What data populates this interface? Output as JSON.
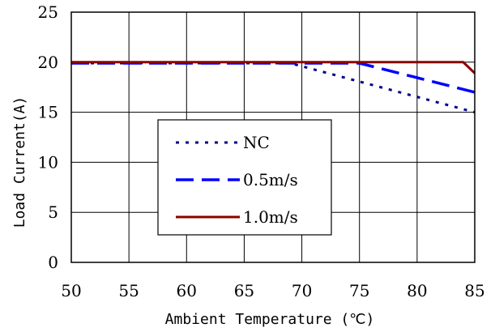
{
  "chart_data": {
    "type": "line",
    "title": "",
    "xlabel": "Ambient Temperature (℃)",
    "ylabel": "Load Current(A)",
    "xlim": [
      50,
      85
    ],
    "ylim": [
      0,
      25
    ],
    "x_ticks": [
      50,
      55,
      60,
      65,
      70,
      75,
      80,
      85
    ],
    "y_ticks": [
      0,
      5,
      10,
      15,
      20,
      25
    ],
    "grid": true,
    "legend_position": "lower-center",
    "series": [
      {
        "name": "NC",
        "style": "dotted",
        "color": "#00008b",
        "x": [
          50,
          69,
          85
        ],
        "y": [
          19.9,
          19.9,
          15
        ]
      },
      {
        "name": "0.5m/s",
        "style": "dashed",
        "color": "#0000ff",
        "x": [
          50,
          75,
          85
        ],
        "y": [
          19.9,
          19.9,
          17
        ]
      },
      {
        "name": "1.0m/s",
        "style": "solid",
        "color": "#8b0000",
        "x": [
          50,
          84,
          85
        ],
        "y": [
          20,
          20,
          18.9
        ]
      }
    ]
  }
}
